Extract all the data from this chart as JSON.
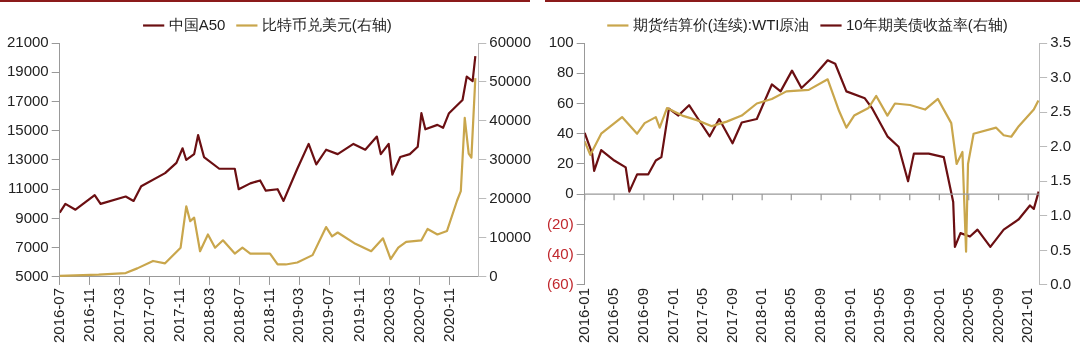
{
  "chart_data": [
    {
      "type": "line",
      "legend": "top",
      "grid": false,
      "marker": "none",
      "xlim": [
        "2016-07-01",
        "2021-02-25"
      ],
      "xticks": [
        "2016-07",
        "2016-11",
        "2017-03",
        "2017-07",
        "2017-11",
        "2018-03",
        "2018-07",
        "2018-11",
        "2019-03",
        "2019-07",
        "2019-11",
        "2020-03",
        "2020-07",
        "2020-11"
      ],
      "ylim": [
        5000,
        21000
      ],
      "yticks": [
        5000,
        7000,
        9000,
        11000,
        13000,
        15000,
        17000,
        19000,
        21000
      ],
      "y2lim": [
        0,
        60000
      ],
      "y2ticks": [
        0,
        10000,
        20000,
        30000,
        40000,
        50000,
        60000
      ],
      "series": [
        {
          "name": "中国A50",
          "color": "#6b0f12",
          "x": [
            "2016-07-01",
            "2016-07-24",
            "2016-09-03",
            "2016-11-20",
            "2016-12-14",
            "2017-03-26",
            "2017-04-27",
            "2017-05-28",
            "2017-09-02",
            "2017-10-18",
            "2017-11-12",
            "2017-11-27",
            "2017-12-29",
            "2018-01-14",
            "2018-02-07",
            "2018-04-10",
            "2018-06-12",
            "2018-06-28",
            "2018-08-14",
            "2018-09-23",
            "2018-10-16",
            "2018-12-03",
            "2018-12-27",
            "2019-02-21",
            "2019-04-08",
            "2019-05-09",
            "2019-06-18",
            "2019-08-04",
            "2019-10-07",
            "2019-11-24",
            "2020-01-10",
            "2020-01-26",
            "2020-02-27",
            "2020-03-13",
            "2020-04-14",
            "2020-05-23",
            "2020-06-24",
            "2020-07-09",
            "2020-07-25",
            "2020-09-12",
            "2020-10-05",
            "2020-10-29",
            "2020-12-23",
            "2021-01-09",
            "2021-02-02",
            "2021-02-13"
          ],
          "values": [
            9400,
            10000,
            9600,
            10600,
            10000,
            10500,
            10200,
            11200,
            12100,
            12800,
            13800,
            13000,
            13400,
            14700,
            13200,
            12400,
            12400,
            11000,
            11400,
            11600,
            10900,
            11000,
            10200,
            12400,
            14100,
            12700,
            13700,
            13400,
            14100,
            13700,
            14600,
            13400,
            14100,
            12000,
            13200,
            13400,
            13900,
            16200,
            15100,
            15400,
            15200,
            16200,
            17100,
            18700,
            18400,
            20100
          ]
        },
        {
          "name": "比特币兑美元(右轴)",
          "color": "#c9a64c",
          "axis": "y2",
          "x": [
            "2016-07-01",
            "2016-12-06",
            "2017-03-26",
            "2017-05-12",
            "2017-07-15",
            "2017-09-02",
            "2017-11-04",
            "2017-11-27",
            "2017-12-13",
            "2017-12-29",
            "2018-01-22",
            "2018-02-23",
            "2018-03-24",
            "2018-04-25",
            "2018-06-12",
            "2018-07-13",
            "2018-08-14",
            "2018-11-02",
            "2018-12-03",
            "2019-01-05",
            "2019-02-21",
            "2019-04-24",
            "2019-06-18",
            "2019-07-12",
            "2019-08-04",
            "2019-10-15",
            "2019-12-18",
            "2020-02-04",
            "2020-03-06",
            "2020-04-06",
            "2020-05-08",
            "2020-07-09",
            "2020-08-03",
            "2020-09-12",
            "2020-10-21",
            "2020-12-01",
            "2020-12-16",
            "2021-01-01",
            "2021-01-17",
            "2021-01-28",
            "2021-02-13"
          ],
          "values": [
            300,
            600,
            1000,
            2200,
            4100,
            3500,
            7500,
            18100,
            14300,
            15200,
            6600,
            10900,
            7500,
            9400,
            6000,
            7500,
            6000,
            6000,
            3200,
            3200,
            3700,
            5600,
            12800,
            10400,
            11400,
            8500,
            6600,
            9900,
            4600,
            7500,
            9000,
            9400,
            12300,
            10900,
            11800,
            19600,
            22000,
            40800,
            31600,
            30600,
            51000
          ]
        }
      ]
    },
    {
      "type": "line",
      "legend": "top",
      "grid": false,
      "marker": "none",
      "xlim": [
        "2016-01-01",
        "2021-02-15"
      ],
      "xticks": [
        "2016-01",
        "2016-05",
        "2016-09",
        "2017-01",
        "2017-05",
        "2017-09",
        "2018-01",
        "2018-05",
        "2018-09",
        "2019-01",
        "2019-05",
        "2019-09",
        "2020-01",
        "2020-05",
        "2020-09",
        "2021-01"
      ],
      "ylim": [
        -60,
        100
      ],
      "yticks": [
        {
          "value": -60,
          "label": "(60)"
        },
        {
          "value": -40,
          "label": "(40)"
        },
        {
          "value": -20,
          "label": "(20)"
        },
        0,
        20,
        40,
        60,
        80,
        100
      ],
      "y2lim": [
        0,
        3.5
      ],
      "y2ticks": [
        {
          "value": 0,
          "label": "0.0"
        },
        {
          "value": 0.5,
          "label": "0.5"
        },
        {
          "value": 1,
          "label": "1.0"
        },
        {
          "value": 1.5,
          "label": "1.5"
        },
        {
          "value": 2,
          "label": "2.0"
        },
        {
          "value": 2.5,
          "label": "2.5"
        },
        {
          "value": 3,
          "label": "3.0"
        },
        {
          "value": 3.5,
          "label": "3.5"
        }
      ],
      "ref_lines": [
        {
          "axis": "y",
          "value": 0,
          "color": "#999999"
        }
      ],
      "series": [
        {
          "name": "期货结算价(连续):WTI原油",
          "color": "#c9a64c",
          "x": [
            "2016-01-01",
            "2016-01-24",
            "2016-03-09",
            "2016-06-03",
            "2016-08-04",
            "2016-09-04",
            "2016-10-20",
            "2016-11-05",
            "2016-12-05",
            "2017-02-06",
            "2017-04-07",
            "2017-06-08",
            "2017-08-08",
            "2017-10-09",
            "2017-12-10",
            "2018-02-10",
            "2018-04-11",
            "2018-07-12",
            "2018-09-28",
            "2018-11-14",
            "2018-12-14",
            "2019-01-15",
            "2019-03-15",
            "2019-04-16",
            "2019-06-01",
            "2019-07-02",
            "2019-09-02",
            "2019-11-03",
            "2019-12-26",
            "2020-02-19",
            "2020-03-12",
            "2020-04-05",
            "2020-04-20",
            "2020-04-28",
            "2020-05-21",
            "2020-08-22",
            "2020-09-22",
            "2020-10-23",
            "2020-11-23",
            "2021-01-24",
            "2021-02-12"
          ],
          "values": [
            35,
            26,
            40,
            51,
            40,
            47,
            51,
            44,
            57,
            52,
            49,
            45,
            48,
            52,
            60,
            63,
            68,
            69,
            76,
            55,
            44,
            52,
            57,
            65,
            52,
            60,
            59,
            56,
            63,
            47,
            20,
            28,
            -38,
            20,
            40,
            44,
            39,
            38,
            45,
            56,
            62
          ]
        },
        {
          "name": "10年期美债收益率(右轴)",
          "color": "#6b0f12",
          "axis": "y2",
          "x": [
            "2016-01-01",
            "2016-02-01",
            "2016-02-09",
            "2016-03-09",
            "2016-05-02",
            "2016-06-18",
            "2016-07-03",
            "2016-08-04",
            "2016-09-19",
            "2016-10-20",
            "2016-11-12",
            "2016-12-13",
            "2017-01-21",
            "2017-03-06",
            "2017-04-22",
            "2017-05-30",
            "2017-07-08",
            "2017-09-01",
            "2017-10-09",
            "2017-12-10",
            "2018-02-10",
            "2018-03-18",
            "2018-05-04",
            "2018-06-12",
            "2018-07-28",
            "2018-09-28",
            "2018-10-29",
            "2018-12-14",
            "2019-02-28",
            "2019-03-31",
            "2019-06-01",
            "2019-07-17",
            "2019-08-25",
            "2019-09-18",
            "2019-11-18",
            "2020-01-19",
            "2020-02-27",
            "2020-03-05",
            "2020-03-28",
            "2020-05-06",
            "2020-06-06",
            "2020-07-29",
            "2020-09-22",
            "2020-11-23",
            "2021-01-08",
            "2021-01-24",
            "2021-02-13"
          ],
          "values": [
            2.2,
            1.9,
            1.65,
            1.95,
            1.8,
            1.7,
            1.35,
            1.6,
            1.6,
            1.8,
            1.85,
            2.55,
            2.45,
            2.6,
            2.35,
            2.15,
            2.4,
            2.05,
            2.35,
            2.4,
            2.9,
            2.8,
            3.1,
            2.85,
            3.0,
            3.25,
            3.2,
            2.8,
            2.7,
            2.55,
            2.15,
            2.0,
            1.5,
            1.9,
            1.9,
            1.85,
            1.2,
            0.55,
            0.75,
            0.7,
            0.8,
            0.55,
            0.8,
            0.95,
            1.15,
            1.1,
            1.35
          ]
        }
      ]
    }
  ]
}
